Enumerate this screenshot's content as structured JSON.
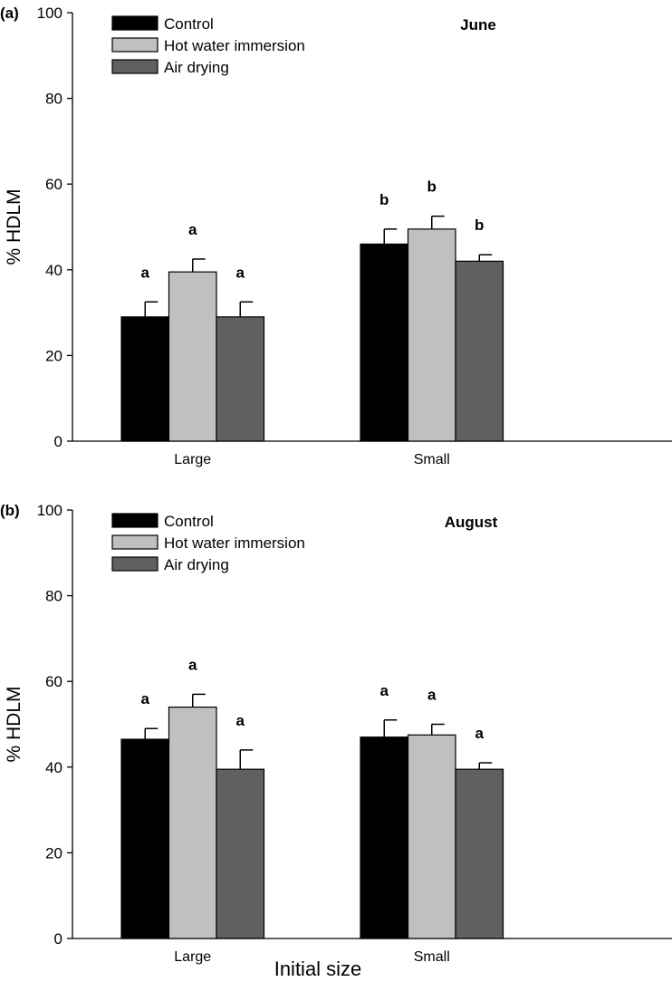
{
  "chart_data": [
    {
      "type": "bar",
      "panel_label": "(a)",
      "month": "June",
      "categories": [
        "Large",
        "Small"
      ],
      "series": [
        {
          "name": "Control",
          "color": "#000000",
          "values": [
            29,
            46
          ],
          "errors": [
            3.5,
            3.5
          ],
          "letters": [
            "a",
            "b"
          ]
        },
        {
          "name": "Hot water immersion",
          "color": "#c0c0c0",
          "values": [
            39.5,
            49.5
          ],
          "errors": [
            3,
            3
          ],
          "letters": [
            "a",
            "b"
          ]
        },
        {
          "name": "Air drying",
          "color": "#606060",
          "values": [
            29,
            42
          ],
          "errors": [
            3.5,
            1.5
          ],
          "letters": [
            "a",
            "b"
          ]
        }
      ],
      "ylabel": "% HDLM",
      "yticks": [
        "0",
        "20",
        "40",
        "60",
        "80",
        "100"
      ],
      "ylim": [
        0,
        100
      ],
      "legend_position": "top-left"
    },
    {
      "type": "bar",
      "panel_label": "(b)",
      "month": "August",
      "categories": [
        "Large",
        "Small"
      ],
      "series": [
        {
          "name": "Control",
          "color": "#000000",
          "values": [
            46.5,
            47
          ],
          "errors": [
            2.5,
            4
          ],
          "letters": [
            "a",
            "a"
          ]
        },
        {
          "name": "Hot water immersion",
          "color": "#c0c0c0",
          "values": [
            54,
            47.5
          ],
          "errors": [
            3,
            2.5
          ],
          "letters": [
            "a",
            "a"
          ]
        },
        {
          "name": "Air drying",
          "color": "#606060",
          "values": [
            39.5,
            39.5
          ],
          "errors": [
            4.5,
            1.5
          ],
          "letters": [
            "a",
            "a"
          ]
        }
      ],
      "ylabel": "% HDLM",
      "yticks": [
        "0",
        "20",
        "40",
        "60",
        "80",
        "100"
      ],
      "ylim": [
        0,
        100
      ],
      "legend_position": "top-left"
    }
  ],
  "xlabel": "Initial size"
}
